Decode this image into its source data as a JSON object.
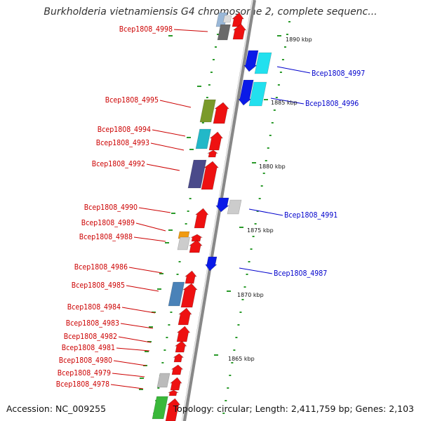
{
  "header": {
    "title": "Burkholderia vietnamiensis G4 chromosome 2, complete sequenc..."
  },
  "footer": {
    "accession": "Accession: NC_009255",
    "topology": "Topology: circular; Length: 2,411,759 bp; Genes: 2,103"
  },
  "colors": {
    "backbone": "#888888",
    "tick_dot": "#2a9a2a",
    "label_reverse": "#cc0000",
    "label_forward": "#0000cc"
  },
  "scale_ticks": [
    {
      "label": "1890 kbp"
    },
    {
      "label": "1885 kbp"
    },
    {
      "label": "1880 kbp"
    },
    {
      "label": "1875 kbp"
    },
    {
      "label": "1870 kbp"
    },
    {
      "label": "1865 kbp"
    }
  ],
  "genes_reverse": [
    {
      "label": "Bcep1808_4998"
    },
    {
      "label": "Bcep1808_4995"
    },
    {
      "label": "Bcep1808_4994"
    },
    {
      "label": "Bcep1808_4993"
    },
    {
      "label": "Bcep1808_4992"
    },
    {
      "label": "Bcep1808_4990"
    },
    {
      "label": "Bcep1808_4989"
    },
    {
      "label": "Bcep1808_4988"
    },
    {
      "label": "Bcep1808_4986"
    },
    {
      "label": "Bcep1808_4985"
    },
    {
      "label": "Bcep1808_4984"
    },
    {
      "label": "Bcep1808_4983"
    },
    {
      "label": "Bcep1808_4982"
    },
    {
      "label": "Bcep1808_4981"
    },
    {
      "label": "Bcep1808_4980"
    },
    {
      "label": "Bcep1808_4979"
    },
    {
      "label": "Bcep1808_4978"
    }
  ],
  "genes_forward": [
    {
      "label": "Bcep1808_4997"
    },
    {
      "label": "Bcep1808_4996"
    },
    {
      "label": "Bcep1808_4991"
    },
    {
      "label": "Bcep1808_4987"
    }
  ]
}
